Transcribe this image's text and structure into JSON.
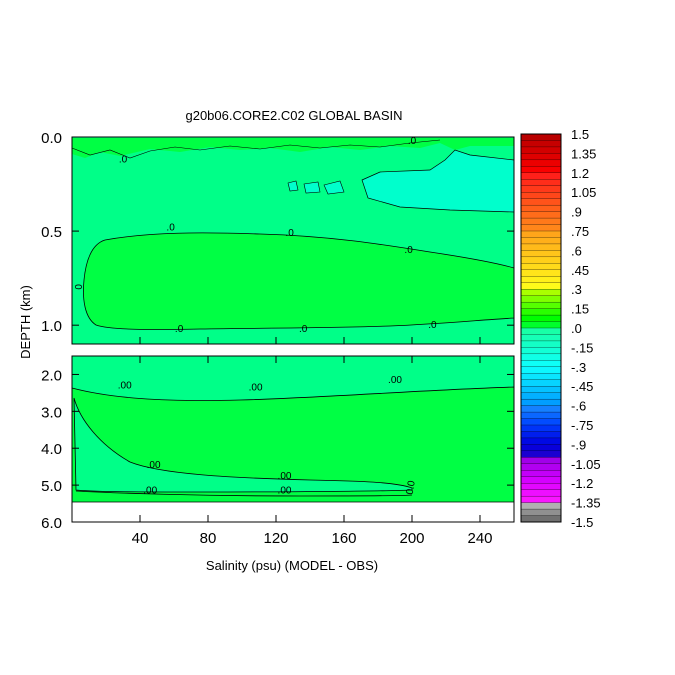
{
  "chart_data": {
    "type": "heatmap",
    "title": "g20b06.CORE2.C02 GLOBAL BASIN",
    "xlabel": "Salinity (psu) (MODEL - OBS)",
    "ylabel": "DEPTH (km)",
    "xlim": [
      0,
      260
    ],
    "x_ticks": [
      "40",
      "80",
      "120",
      "160",
      "200",
      "240"
    ],
    "x_tick_values": [
      40,
      80,
      120,
      160,
      200,
      240
    ],
    "y_top_panel": {
      "ylim": [
        0,
        1.1
      ],
      "ticks": [
        "0.0",
        "0.5",
        "1.0"
      ],
      "tick_values": [
        0.0,
        0.5,
        1.0
      ]
    },
    "y_bottom_panel": {
      "ylim": [
        1.5,
        6.0
      ],
      "ticks": [
        "2.0",
        "3.0",
        "4.0",
        "5.0",
        "6.0"
      ],
      "tick_values": [
        2.0,
        3.0,
        4.0,
        5.0,
        6.0
      ]
    },
    "contour_labels_top": [
      {
        "text": ".0",
        "x": 30,
        "y": 0.12
      },
      {
        "text": ".0",
        "x": 58,
        "y": 0.48
      },
      {
        "text": ".0",
        "x": 128,
        "y": 0.51
      },
      {
        "text": ".0",
        "x": 198,
        "y": 0.6
      },
      {
        "text": "0",
        "x": 6,
        "y": 0.78
      },
      {
        "text": ".0",
        "x": 63,
        "y": 1.02
      },
      {
        "text": ".0",
        "x": 136,
        "y": 1.02
      },
      {
        "text": ".0",
        "x": 212,
        "y": 1.0
      },
      {
        "text": ".0",
        "x": 200,
        "y": 0.02
      }
    ],
    "contour_labels_bottom": [
      {
        "text": ".00",
        "x": 31,
        "y": 2.3
      },
      {
        "text": ".00",
        "x": 108,
        "y": 2.35
      },
      {
        "text": ".00",
        "x": 190,
        "y": 2.15
      },
      {
        "text": ".00",
        "x": 48,
        "y": 4.45
      },
      {
        "text": ".00",
        "x": 125,
        "y": 4.75
      },
      {
        "text": ".00",
        "x": 46,
        "y": 5.15
      },
      {
        "text": ".00",
        "x": 125,
        "y": 5.15
      },
      {
        "text": "0.0",
        "x": 201,
        "y": 5.0
      }
    ],
    "colorbar": {
      "min": -1.5,
      "max": 1.5,
      "step": 0.05,
      "labels": [
        "1.5",
        "1.35",
        "1.2",
        "1.05",
        ".9",
        ".75",
        ".6",
        ".45",
        ".3",
        ".15",
        ".0",
        "-.15",
        "-.3",
        "-.45",
        "-.6",
        "-.75",
        "-.9",
        "-1.05",
        "-1.2",
        "-1.35",
        "-1.5"
      ],
      "label_values": [
        1.5,
        1.35,
        1.2,
        1.05,
        0.9,
        0.75,
        0.6,
        0.45,
        0.3,
        0.15,
        0.0,
        -0.15,
        -0.3,
        -0.45,
        -0.6,
        -0.75,
        -0.9,
        -1.05,
        -1.2,
        -1.35,
        -1.5
      ]
    },
    "colors": {
      "near_zero_positive": "#00ff44",
      "near_zero_negative": "#00ff88",
      "slightly_negative": "#00ffcc",
      "no_data": "#ffffff"
    }
  }
}
